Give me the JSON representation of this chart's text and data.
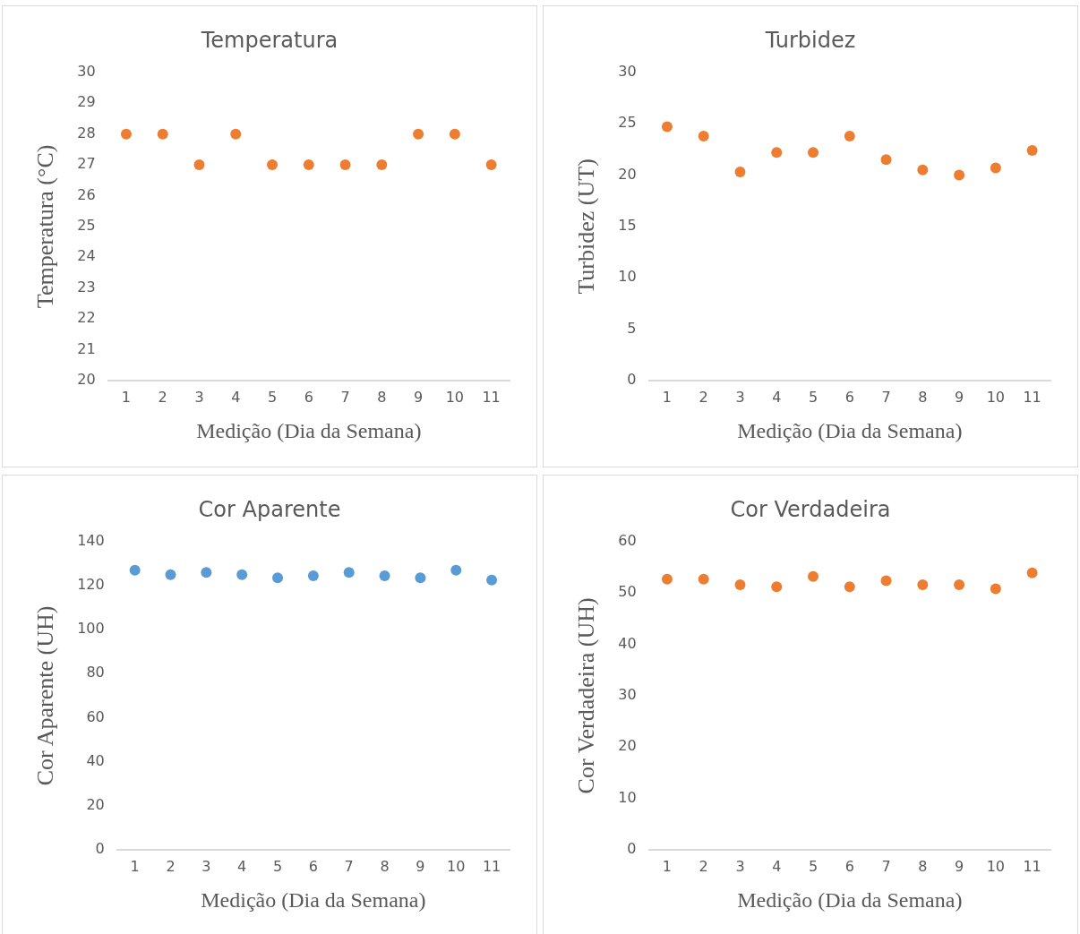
{
  "chart_data": [
    {
      "type": "scatter",
      "title": "Temperatura",
      "xlabel": "Medição (Dia da Semana)",
      "ylabel": "Temperatura (°C)",
      "categories": [
        "1",
        "2",
        "3",
        "4",
        "5",
        "6",
        "7",
        "8",
        "9",
        "10",
        "11"
      ],
      "values": [
        28,
        28,
        27,
        28,
        27,
        27,
        27,
        27,
        28,
        28,
        27
      ],
      "color": "#ed7d31",
      "ylim": [
        20,
        30
      ],
      "yticks": [
        20,
        21,
        22,
        23,
        24,
        25,
        26,
        27,
        28,
        29,
        30
      ],
      "marker": "circle",
      "grid": false,
      "legend": false
    },
    {
      "type": "scatter",
      "title": "Turbidez",
      "xlabel": "Medição (Dia da Semana)",
      "ylabel": "Turbidez (UT)",
      "categories": [
        "1",
        "2",
        "3",
        "4",
        "5",
        "6",
        "7",
        "8",
        "9",
        "10",
        "11"
      ],
      "values": [
        24.7,
        23.8,
        20.3,
        22.2,
        22.2,
        23.8,
        21.5,
        20.5,
        20,
        20.7,
        22.4
      ],
      "color": "#ed7d31",
      "ylim": [
        0,
        30
      ],
      "yticks": [
        0,
        5,
        10,
        15,
        20,
        25,
        30
      ],
      "marker": "circle",
      "grid": false,
      "legend": false
    },
    {
      "type": "scatter",
      "title": "Cor Aparente",
      "xlabel": "Medição (Dia da Semana)",
      "ylabel": "Cor Aparente (UH)",
      "categories": [
        "1",
        "2",
        "3",
        "4",
        "5",
        "6",
        "7",
        "8",
        "9",
        "10",
        "11"
      ],
      "values": [
        127,
        125,
        126,
        125,
        123.5,
        124.5,
        126,
        124.5,
        123.5,
        127,
        122.5
      ],
      "color": "#5b9bd5",
      "ylim": [
        0,
        140
      ],
      "yticks": [
        0,
        20,
        40,
        60,
        80,
        100,
        120,
        140
      ],
      "marker": "circle",
      "grid": false,
      "legend": false
    },
    {
      "type": "scatter",
      "title": "Cor Verdadeira",
      "xlabel": "Medição (Dia da Semana)",
      "ylabel": "Cor Verdadeira (UH)",
      "categories": [
        "1",
        "2",
        "3",
        "4",
        "5",
        "6",
        "7",
        "8",
        "9",
        "10",
        "11"
      ],
      "values": [
        52.7,
        52.7,
        51.6,
        51.2,
        53.2,
        51.2,
        52.4,
        51.6,
        51.6,
        50.8,
        53.9
      ],
      "color": "#ed7d31",
      "ylim": [
        0,
        60
      ],
      "yticks": [
        0,
        10,
        20,
        30,
        40,
        50,
        60
      ],
      "marker": "circle",
      "grid": false,
      "legend": false
    }
  ]
}
